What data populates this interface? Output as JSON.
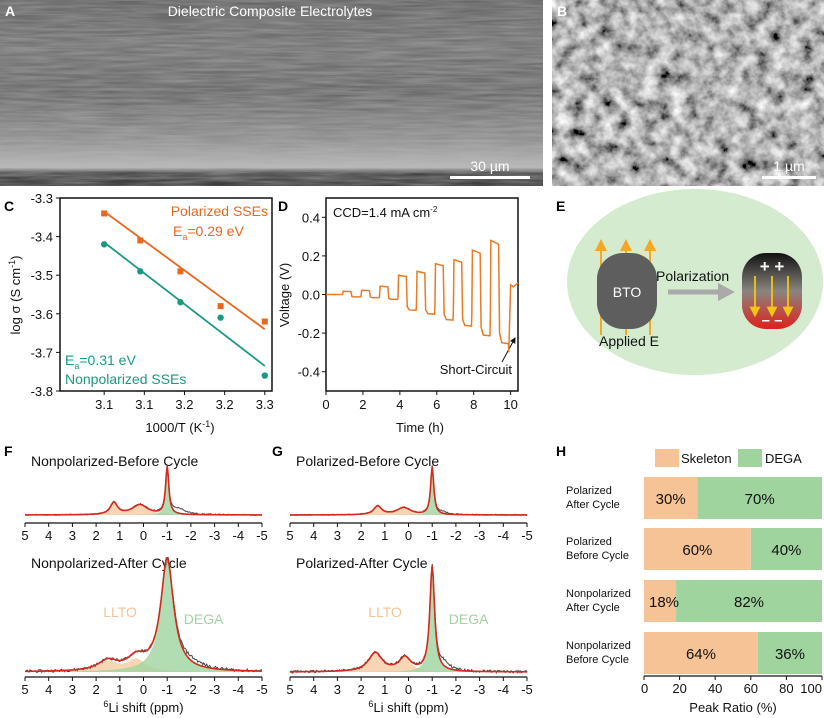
{
  "panel_labels": [
    "A",
    "B",
    "C",
    "D",
    "E",
    "F",
    "G",
    "H"
  ],
  "panel_a": {
    "title": "Dielectric Composite Electrolytes",
    "scale_bar": "30 µm"
  },
  "panel_b": {
    "scale_bar": "1 µm"
  },
  "colors": {
    "polarized": "#e8681e",
    "nonpolarized": "#1b9983",
    "voltage": "#ea7a23",
    "skeleton": "#f5c396",
    "dega": "#9fd49f",
    "fit": "#d42a1e",
    "experimental": "#444444",
    "matrix": "#d4ebcf",
    "bto": "#5e5e5e",
    "field_arrow": "#f5a623"
  },
  "chart_data": [
    {
      "panel": "C",
      "type": "scatter",
      "xlabel": "1000/T (K",
      "xlabel_sup": "-1",
      "xlabel_end": ")",
      "ylabel": "log σ (S cm",
      "ylabel_sup": "-1",
      "ylabel_end": ")",
      "xlim": [
        3.045,
        3.309
      ],
      "ylim": [
        -3.8,
        -3.3
      ],
      "xticks": [
        3.1,
        3.15,
        3.2,
        3.25,
        3.3
      ],
      "xtick_labels": [
        "3.1",
        "3.1",
        "3.2",
        "3.2",
        "3.3"
      ],
      "yticks": [
        -3.3,
        -3.4,
        -3.5,
        -3.6,
        -3.7,
        -3.8
      ],
      "ytick_labels": [
        "-3.3",
        "-3.4",
        "-3.5",
        "-3.6",
        "-3.7",
        "-3.8"
      ],
      "series": [
        {
          "name": "Polarized SSEs",
          "ea_main": "E",
          "ea_sub": "a",
          "ea_rest": "=0.29 eV",
          "marker": "square",
          "x": [
            3.1,
            3.145,
            3.195,
            3.245,
            3.3
          ],
          "y": [
            -3.34,
            -3.41,
            -3.49,
            -3.58,
            -3.62
          ],
          "fit": [
            [
              3.1,
              -3.335
            ],
            [
              3.3,
              -3.64
            ]
          ]
        },
        {
          "name": "Nonpolarized SSEs",
          "ea_main": "E",
          "ea_sub": "a",
          "ea_rest": "=0.31 eV",
          "marker": "circle",
          "x": [
            3.1,
            3.145,
            3.195,
            3.245,
            3.3
          ],
          "y": [
            -3.42,
            -3.49,
            -3.57,
            -3.61,
            -3.76
          ],
          "fit": [
            [
              3.1,
              -3.415
            ],
            [
              3.3,
              -3.735
            ]
          ]
        }
      ]
    },
    {
      "panel": "D",
      "type": "line",
      "annotation": "CCD=1.4 mA cm",
      "annotation_sup": "-2",
      "short_circuit_label": "Short-Circuit",
      "xlabel": "Time (h)",
      "ylabel": "Voltage (V)",
      "xlim": [
        0,
        10.4
      ],
      "ylim": [
        -0.5,
        0.5
      ],
      "xticks": [
        0,
        2,
        4,
        6,
        8,
        10
      ],
      "xtick_labels": [
        "0",
        "2",
        "4",
        "6",
        "8",
        "10"
      ],
      "yticks": [
        0.4,
        0.2,
        0,
        -0.2,
        -0.4
      ],
      "ytick_labels": [
        "0.4",
        "0.2",
        "0.0",
        "-0.2",
        "-0.4"
      ],
      "pulses": [
        {
          "t": 0.9,
          "pos": 0.017,
          "neg": -0.012
        },
        {
          "t": 1.9,
          "pos": 0.022,
          "neg": -0.016
        },
        {
          "t": 2.9,
          "pos": 0.043,
          "neg": -0.025
        },
        {
          "t": 3.9,
          "pos": 0.1,
          "neg": -0.08
        },
        {
          "t": 4.9,
          "pos": 0.12,
          "neg": -0.1
        },
        {
          "t": 5.9,
          "pos": 0.16,
          "neg": -0.13
        },
        {
          "t": 6.9,
          "pos": 0.18,
          "neg": -0.16
        },
        {
          "t": 7.9,
          "pos": 0.23,
          "neg": -0.21
        },
        {
          "t": 8.9,
          "pos": 0.28,
          "neg": -0.25
        }
      ],
      "short_circuit": {
        "t": 9.9,
        "min": -0.3,
        "after": 0.05
      }
    },
    {
      "panel": "F/G",
      "type": "line",
      "xlabel_sup": "6",
      "xlabel": "Li shift (ppm)",
      "xlim": [
        5,
        -5
      ],
      "xticks": [
        5,
        4,
        3,
        2,
        1,
        0,
        -1,
        -2,
        -3,
        -4,
        -5
      ],
      "xtick_labels": [
        "5",
        "4",
        "3",
        "2",
        "1",
        "0",
        "-1",
        "-2",
        "-3",
        "-4",
        "-5"
      ],
      "component_labels": {
        "skeleton": "LLTO",
        "dega": "DEGA"
      },
      "spectra": [
        {
          "title": "Nonpolarized-Before Cycle",
          "dega": {
            "ppm": -1.0,
            "intensity": 1.0,
            "width": 0.08
          },
          "skeleton": [
            {
              "ppm": 1.25,
              "intensity": 0.25,
              "width": 0.18
            },
            {
              "ppm": 0.15,
              "intensity": 0.21,
              "width": 0.4
            }
          ],
          "residual": {
            "ppm": -1.5,
            "intensity": 0.11,
            "width": 0.35
          }
        },
        {
          "title": "Nonpolarized-After Cycle",
          "dega": {
            "ppm": -1.0,
            "intensity": 1.0,
            "width": 0.33
          },
          "skeleton": [
            {
              "ppm": 1.5,
              "intensity": 0.09,
              "width": 0.5
            },
            {
              "ppm": 0.3,
              "intensity": 0.11,
              "width": 0.45
            }
          ],
          "residual": {
            "ppm": -2.0,
            "intensity": 0.04,
            "width": 0.6
          }
        },
        {
          "title": "Polarized-Before Cycle",
          "dega": {
            "ppm": -1.0,
            "intensity": 1.0,
            "width": 0.08
          },
          "skeleton": [
            {
              "ppm": 1.3,
              "intensity": 0.18,
              "width": 0.2
            },
            {
              "ppm": 0.2,
              "intensity": 0.15,
              "width": 0.35
            }
          ],
          "residual": {
            "ppm": -1.4,
            "intensity": 0.05,
            "width": 0.3
          }
        },
        {
          "title": "Polarized-After Cycle",
          "dega": {
            "ppm": -1.0,
            "intensity": 1.0,
            "width": 0.12
          },
          "skeleton": [
            {
              "ppm": 1.4,
              "intensity": 0.18,
              "width": 0.35
            },
            {
              "ppm": 0.15,
              "intensity": 0.13,
              "width": 0.3
            }
          ],
          "residual": {
            "ppm": -1.5,
            "intensity": 0.06,
            "width": 0.3
          }
        }
      ]
    },
    {
      "panel": "H",
      "type": "bar",
      "orientation": "horizontal",
      "stacked": true,
      "xlabel": "Peak Ratio (%)",
      "xlim": [
        0,
        100
      ],
      "xticks": [
        0,
        20,
        40,
        60,
        80,
        100
      ],
      "xtick_labels": [
        "0",
        "20",
        "40",
        "60",
        "80",
        "100"
      ],
      "legend": [
        "Skeleton",
        "DEGA"
      ],
      "legend_position": "top",
      "categories": [
        [
          "Polarized",
          "After Cycle"
        ],
        [
          "Polarized",
          "Before Cycle"
        ],
        [
          "Nonpolarized",
          "After Cycle"
        ],
        [
          "Nonpolarized",
          "Before Cycle"
        ]
      ],
      "series": [
        {
          "name": "Skeleton",
          "values": [
            30,
            60,
            18,
            64
          ],
          "labels": [
            "30%",
            "60%",
            "18%",
            "64%"
          ]
        },
        {
          "name": "DEGA",
          "values": [
            70,
            40,
            82,
            36
          ],
          "labels": [
            "70%",
            "40%",
            "82%",
            "36%"
          ]
        }
      ]
    }
  ],
  "panel_e": {
    "particle": "BTO",
    "process": "Polarization",
    "field": "Applied E",
    "plus": "+ +",
    "minus": "– –"
  }
}
